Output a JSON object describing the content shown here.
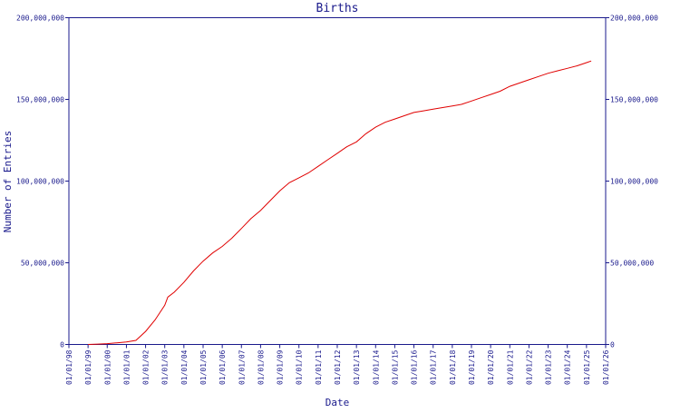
{
  "chart_data": {
    "type": "line",
    "title": "Births",
    "xlabel": "Date",
    "ylabel": "Number of Entries",
    "ylim": [
      0,
      200000000
    ],
    "y_ticks": [
      0,
      50000000,
      100000000,
      150000000,
      200000000
    ],
    "y_tick_labels": [
      "0",
      "50,000,000",
      "100,000,000",
      "150,000,000",
      "200,000,000"
    ],
    "x_ticks": [
      "1998-01-01",
      "1999-01-01",
      "2000-01-01",
      "2001-01-01",
      "2002-01-01",
      "2003-01-01",
      "2004-01-01",
      "2005-01-01",
      "2006-01-01",
      "2007-01-01",
      "2008-01-01",
      "2009-01-01",
      "2010-01-01",
      "2011-01-01",
      "2012-01-01",
      "2013-01-01",
      "2014-01-01",
      "2015-01-01",
      "2016-01-01",
      "2017-01-01",
      "2018-01-01",
      "2019-01-01",
      "2020-01-01",
      "2021-01-01",
      "2022-01-01",
      "2023-01-01",
      "2024-01-01",
      "2025-01-01",
      "2026-01-01"
    ],
    "x_tick_labels": [
      "01/01/98",
      "01/01/99",
      "01/01/00",
      "01/01/01",
      "01/01/02",
      "01/01/03",
      "01/01/04",
      "01/01/05",
      "01/01/06",
      "01/01/07",
      "01/01/08",
      "01/01/09",
      "01/01/10",
      "01/01/11",
      "01/01/12",
      "01/01/13",
      "01/01/14",
      "01/01/15",
      "01/01/16",
      "01/01/17",
      "01/01/18",
      "01/01/19",
      "01/01/20",
      "01/01/21",
      "01/01/22",
      "01/01/23",
      "01/01/24",
      "01/01/25",
      "01/01/26"
    ],
    "xlim": [
      "1998-01-01",
      "2026-01-01"
    ],
    "grid": false,
    "line_color": "#e00000",
    "axis_color": "#1a1a8c",
    "series": [
      {
        "x": [
          "1999-01-01",
          "1999-07-01",
          "2000-01-01",
          "2000-07-01",
          "2001-01-01",
          "2001-07-01",
          "2002-01-01",
          "2002-07-01",
          "2003-01-01",
          "2003-03-01",
          "2003-07-01",
          "2004-01-01",
          "2004-07-01",
          "2005-01-01",
          "2005-07-01",
          "2006-01-01",
          "2006-07-01",
          "2007-01-01",
          "2007-07-01",
          "2008-01-01",
          "2008-07-01",
          "2009-01-01",
          "2009-07-01",
          "2010-01-01",
          "2010-07-01",
          "2011-01-01",
          "2011-07-01",
          "2012-01-01",
          "2012-07-01",
          "2013-01-01",
          "2013-07-01",
          "2014-01-01",
          "2014-07-01",
          "2015-01-01",
          "2015-07-01",
          "2016-01-01",
          "2016-07-01",
          "2017-01-01",
          "2017-07-01",
          "2018-01-01",
          "2018-07-01",
          "2019-01-01",
          "2019-07-01",
          "2020-01-01",
          "2020-07-01",
          "2021-01-01",
          "2021-07-01",
          "2022-01-01",
          "2022-07-01",
          "2023-01-01",
          "2023-07-01",
          "2024-01-01",
          "2024-07-01",
          "2025-01-01",
          "2025-04-01"
        ],
        "y": [
          0,
          200000,
          500000,
          1000000,
          1500000,
          2500000,
          8000000,
          15000000,
          24000000,
          29000000,
          32000000,
          38000000,
          45000000,
          51000000,
          56000000,
          60000000,
          65000000,
          71000000,
          77000000,
          82000000,
          88000000,
          94000000,
          99000000,
          102000000,
          105000000,
          109000000,
          113000000,
          117000000,
          121000000,
          124000000,
          129000000,
          133000000,
          136000000,
          138000000,
          140000000,
          142000000,
          143000000,
          144000000,
          145000000,
          146000000,
          147000000,
          149000000,
          151000000,
          153000000,
          155000000,
          158000000,
          160000000,
          162000000,
          164000000,
          166000000,
          167500000,
          169000000,
          170500000,
          172500000,
          173500000
        ]
      }
    ]
  }
}
